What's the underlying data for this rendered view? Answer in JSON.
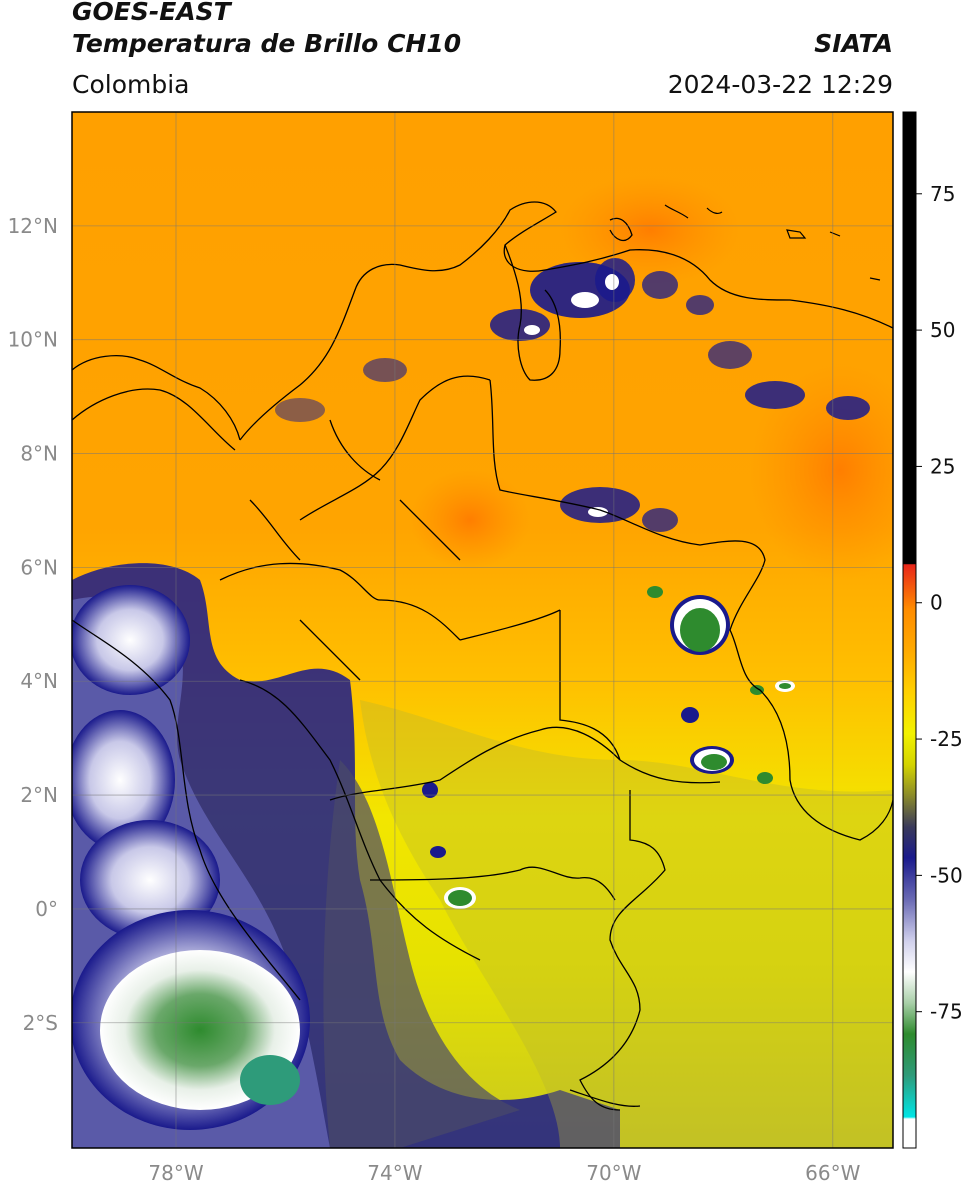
{
  "header": {
    "satellite": "GOES-EAST",
    "product": "Temperatura de Brillo CH10",
    "organization": "SIATA",
    "region": "Colombia",
    "timestamp": "2024-03-22 12:29"
  },
  "map": {
    "lon_range": [
      -79.9,
      -64.9
    ],
    "lat_range": [
      -4.2,
      14.0
    ],
    "lon_ticks": [
      {
        "value": -78,
        "label": "78°W"
      },
      {
        "value": -74,
        "label": "74°W"
      },
      {
        "value": -70,
        "label": "70°W"
      },
      {
        "value": -66,
        "label": "66°W"
      }
    ],
    "lat_ticks": [
      {
        "value": 12,
        "label": "12°N"
      },
      {
        "value": 10,
        "label": "10°N"
      },
      {
        "value": 8,
        "label": "8°N"
      },
      {
        "value": 6,
        "label": "6°N"
      },
      {
        "value": 4,
        "label": "4°N"
      },
      {
        "value": 2,
        "label": "2°N"
      },
      {
        "value": 0,
        "label": "0°"
      },
      {
        "value": -2,
        "label": "2°S"
      }
    ],
    "grid": true
  },
  "colorbar": {
    "unit_range": [
      -100,
      90
    ],
    "ticks": [
      {
        "value": 75,
        "label": "75"
      },
      {
        "value": 50,
        "label": "50"
      },
      {
        "value": 25,
        "label": "25"
      },
      {
        "value": 0,
        "label": "0"
      },
      {
        "value": -25,
        "label": "-25"
      },
      {
        "value": -50,
        "label": "-50"
      },
      {
        "value": -75,
        "label": "-75"
      }
    ],
    "colors": {
      "black": "#000000",
      "red": "#e8261a",
      "orange": "#ff8c00",
      "yellow": "#f2f200",
      "olive": "#8a8a2a",
      "navy": "#1a1a8c",
      "white": "#ffffff",
      "green": "#2e8b2e",
      "cyan": "#00e5e5"
    }
  }
}
